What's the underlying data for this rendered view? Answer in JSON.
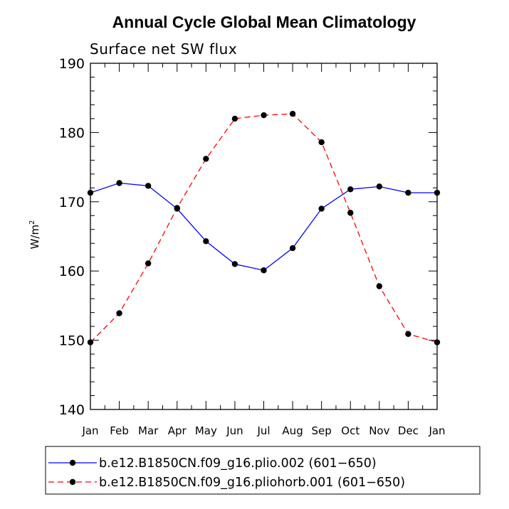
{
  "chart_data": {
    "type": "line",
    "title": "Annual Cycle Global Mean Climatology",
    "subtitle": "Surface net SW flux",
    "xlabel": "",
    "ylabel_base": "W/m",
    "ylabel_sup": "2",
    "categories": [
      "Jan",
      "Feb",
      "Mar",
      "Apr",
      "May",
      "Jun",
      "Jul",
      "Aug",
      "Sep",
      "Oct",
      "Nov",
      "Dec",
      "Jan"
    ],
    "ylim": [
      140,
      190
    ],
    "yticks": [
      140,
      150,
      160,
      170,
      180,
      190
    ],
    "series": [
      {
        "name": "b.e12.B1850CN.f09_g16.plio.002 (601−650)",
        "color": "#0000ff",
        "dash": "solid",
        "marker": "filled-circle",
        "values": [
          171.3,
          172.7,
          172.3,
          169.0,
          164.3,
          161.0,
          160.1,
          163.3,
          169.0,
          171.8,
          172.2,
          171.3,
          171.3
        ]
      },
      {
        "name": "b.e12.B1850CN.f09_g16.pliohorb.001 (601−650)",
        "color": "#ff0000",
        "dash": "dashed",
        "marker": "filled-circle",
        "values": [
          149.7,
          153.9,
          161.1,
          169.1,
          176.2,
          182.0,
          182.5,
          182.7,
          178.6,
          168.4,
          157.8,
          150.9,
          149.7
        ]
      }
    ]
  }
}
